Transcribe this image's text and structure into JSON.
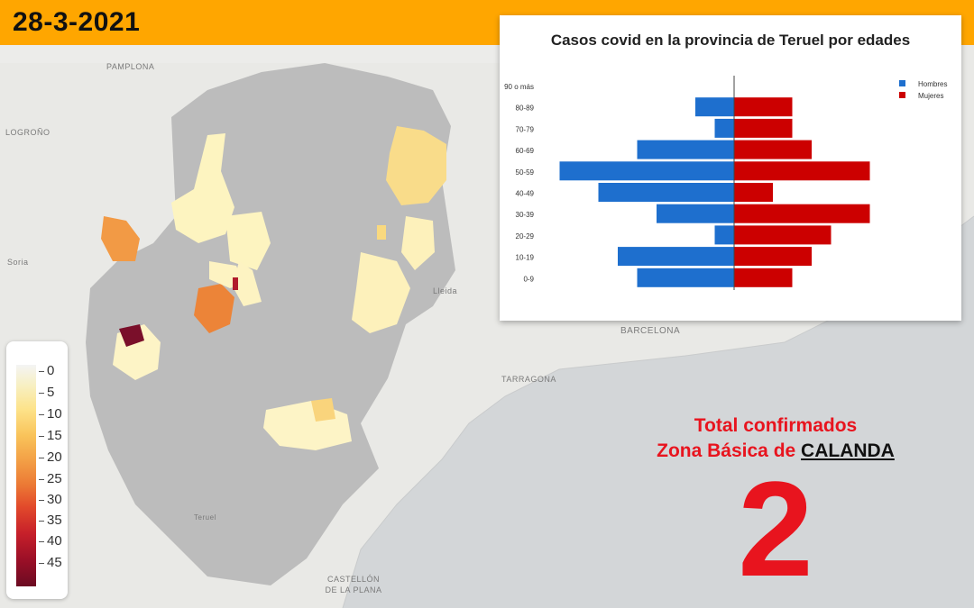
{
  "header": {
    "date": "28-3-2021"
  },
  "map": {
    "place_labels": [
      "PAMPLONA",
      "LOGROÑO",
      "Soria",
      "Lleida",
      "BARCELONA",
      "TARRAGONA",
      "CASTELLÓN DE LA PLANA",
      "Teruel"
    ]
  },
  "legend": {
    "ticks": [
      "0",
      "5",
      "10",
      "15",
      "20",
      "25",
      "30",
      "35",
      "40",
      "45"
    ]
  },
  "chart": {
    "title": "Casos covid en la provincia de Teruel por edades"
  },
  "chart_data": {
    "type": "bar",
    "title": "Casos covid en la provincia de Teruel por edades",
    "orientation": "horizontal-population-pyramid",
    "categories": [
      "90 o más",
      "80-89",
      "70-79",
      "60-69",
      "50-59",
      "40-49",
      "30-39",
      "20-29",
      "10-19",
      "0-9"
    ],
    "series": [
      {
        "name": "Hombres",
        "color": "#1e6fce",
        "values": [
          0,
          2,
          1,
          5,
          9,
          7,
          4,
          1,
          6,
          5
        ]
      },
      {
        "name": "Mujeres",
        "color": "#cc0000",
        "values": [
          0,
          3,
          3,
          4,
          7,
          2,
          7,
          5,
          4,
          3
        ]
      }
    ],
    "xlim": [
      -9,
      9
    ],
    "legend_position": "top-right",
    "grid": false
  },
  "total": {
    "line1": "Total confirmados",
    "line2_prefix": "Zona Básica de ",
    "zone": "CALANDA",
    "value": "2"
  }
}
